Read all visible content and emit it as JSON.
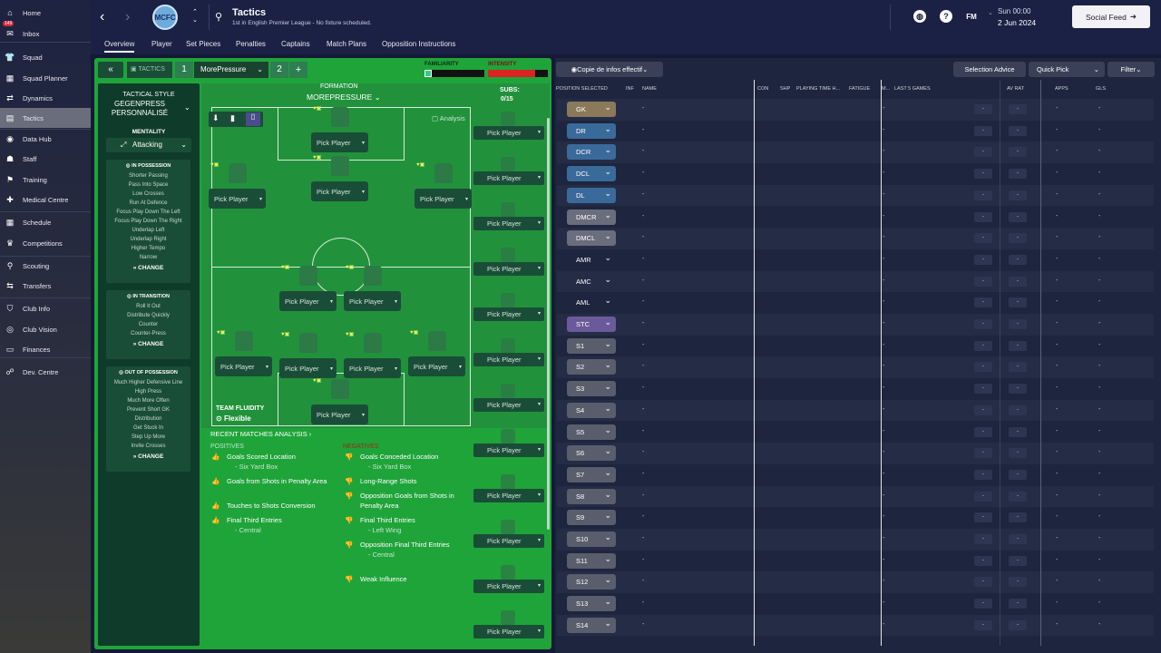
{
  "sidebar": {
    "items": [
      {
        "label": "Home",
        "icon": "home-icon",
        "glyph": "⌂"
      },
      {
        "label": "Inbox",
        "icon": "inbox-icon",
        "glyph": "✉",
        "badge": "149"
      },
      {
        "label": "Squad",
        "icon": "squad-icon",
        "glyph": "👕"
      },
      {
        "label": "Squad Planner",
        "icon": "squad-planner-icon",
        "glyph": "▦"
      },
      {
        "label": "Dynamics",
        "icon": "dynamics-icon",
        "glyph": "⇄"
      },
      {
        "label": "Tactics",
        "icon": "tactics-icon",
        "glyph": "▤"
      },
      {
        "label": "Data Hub",
        "icon": "data-hub-icon",
        "glyph": "◉"
      },
      {
        "label": "Staff",
        "icon": "staff-icon",
        "glyph": "☗"
      },
      {
        "label": "Training",
        "icon": "training-icon",
        "glyph": "⚑"
      },
      {
        "label": "Medical Centre",
        "icon": "medical-icon",
        "glyph": "✚"
      },
      {
        "label": "Schedule",
        "icon": "schedule-icon",
        "glyph": "▦"
      },
      {
        "label": "Competitions",
        "icon": "trophy-icon",
        "glyph": "♛"
      },
      {
        "label": "Scouting",
        "icon": "scouting-icon",
        "glyph": "⚲"
      },
      {
        "label": "Transfers",
        "icon": "transfers-icon",
        "glyph": "⇆"
      },
      {
        "label": "Club Info",
        "icon": "club-info-icon",
        "glyph": "⛉"
      },
      {
        "label": "Club Vision",
        "icon": "club-vision-icon",
        "glyph": "◎"
      },
      {
        "label": "Finances",
        "icon": "finances-icon",
        "glyph": "▭"
      },
      {
        "label": "Dev. Centre",
        "icon": "dev-centre-icon",
        "glyph": "☍"
      }
    ]
  },
  "header": {
    "title": "Tactics",
    "subtitle": "1st in English Premier League - No fixture scheduled.",
    "crest": "MCFC",
    "date_day": "Sun 00:00",
    "date": "2 Jun 2024",
    "social_label": "Social Feed",
    "fm_label": "FM",
    "help_label": "?"
  },
  "tabs": [
    "Overview",
    "Player",
    "Set Pieces",
    "Penalties",
    "Captains",
    "Match Plans",
    "Opposition Instructions"
  ],
  "tactic_bar": {
    "tactics_label": "TACTICS",
    "slot1": "1",
    "tactic_name": "MorePressure",
    "slot2": "2",
    "add": "+",
    "familiarity": "FAMILIARITY",
    "intensity": "INTENSITY"
  },
  "left_col": {
    "style_label": "TACTICAL STYLE",
    "style_value": "GEGENPRESS PERSONNALISÉ",
    "mentality_label": "MENTALITY",
    "mentality_value": "Attacking",
    "in_possession_title": "IN POSSESSION",
    "in_possession": [
      "Shorter Passing",
      "Pass Into Space",
      "Low Crosses",
      "Run At Defence",
      "Focus Play Down The Left",
      "Focus Play Down The Right",
      "Underlap Left",
      "Underlap Right",
      "Higher Tempo",
      "Narrow"
    ],
    "in_transition_title": "IN TRANSITION",
    "in_transition": [
      "Roll It Out",
      "Distribute Quickly",
      "Counter",
      "Counter-Press"
    ],
    "out_possession_title": "OUT OF POSSESSION",
    "out_possession": [
      "Much Higher Defensive Line",
      "High Press",
      "Much More Often",
      "Prevent Short GK",
      "Distribution",
      "Get Stuck In",
      "Step Up More",
      "Invite Crosses"
    ],
    "change_label": "CHANGE"
  },
  "formation": {
    "label": "FORMATION",
    "name": "MOREPRESSURE",
    "subs_label": "SUBS:",
    "subs_value": "0/15",
    "analysis_label": "Analysis",
    "pick": "Pick Player",
    "fluidity_label": "TEAM FLUIDITY",
    "fluidity_value": "Flexible"
  },
  "analysis": {
    "title": "RECENT MATCHES ANALYSIS",
    "positives_label": "POSITIVES",
    "negatives_label": "NEGATIVES",
    "positives": [
      {
        "t": "Goals Scored Location",
        "s": "- Six Yard Box"
      },
      {
        "t": "Goals from Shots in Penalty Area",
        "s": ""
      },
      {
        "t": "Touches to Shots Conversion",
        "s": ""
      },
      {
        "t": "Final Third Entries",
        "s": "- Central"
      }
    ],
    "negatives": [
      {
        "t": "Goals Conceded Location",
        "s": "- Six Yard Box"
      },
      {
        "t": "Long-Range Shots",
        "s": ""
      },
      {
        "t": "Opposition Goals from Shots in Penalty Area",
        "s": ""
      },
      {
        "t": "Final Third Entries",
        "s": "- Left Wing"
      },
      {
        "t": "Opposition Final Third Entries",
        "s": "- Central"
      },
      {
        "t": "Weak Influence",
        "s": ""
      }
    ]
  },
  "right": {
    "copy_label": "Copie de infos effectif",
    "selection_advice": "Selection Advice",
    "quick_pick": "Quick Pick",
    "filter": "Filter",
    "columns": [
      "POSITION SELECTED",
      "INF",
      "NAME",
      "CON",
      "SHP",
      "PLAYING TIME H...",
      "FATIGUE",
      "M...",
      "LAST 5 GAMES",
      "AV RAT",
      "APPS",
      "GLS"
    ],
    "dash": "-",
    "positions": [
      {
        "p": "GK",
        "c": "#8a7a5a"
      },
      {
        "p": "DR",
        "c": "#3a6a9a"
      },
      {
        "p": "DCR",
        "c": "#3a6a9a"
      },
      {
        "p": "DCL",
        "c": "#3a6a9a"
      },
      {
        "p": "DL",
        "c": "#3a6a9a"
      },
      {
        "p": "DMCR",
        "c": "#6a6d7c"
      },
      {
        "p": "DMCL",
        "c": "#6a6d7c"
      },
      {
        "p": "AMR",
        "c": "transparent"
      },
      {
        "p": "AMC",
        "c": "transparent"
      },
      {
        "p": "AML",
        "c": "transparent"
      },
      {
        "p": "STC",
        "c": "#6b5a9a"
      },
      {
        "p": "S1",
        "c": "#5a5d6c"
      },
      {
        "p": "S2",
        "c": "#5a5d6c"
      },
      {
        "p": "S3",
        "c": "#5a5d6c"
      },
      {
        "p": "S4",
        "c": "#5a5d6c"
      },
      {
        "p": "S5",
        "c": "#5a5d6c"
      },
      {
        "p": "S6",
        "c": "#5a5d6c"
      },
      {
        "p": "S7",
        "c": "#5a5d6c"
      },
      {
        "p": "S8",
        "c": "#5a5d6c"
      },
      {
        "p": "S9",
        "c": "#5a5d6c"
      },
      {
        "p": "S10",
        "c": "#5a5d6c"
      },
      {
        "p": "S11",
        "c": "#5a5d6c"
      },
      {
        "p": "S12",
        "c": "#5a5d6c"
      },
      {
        "p": "S13",
        "c": "#5a5d6c"
      },
      {
        "p": "S14",
        "c": "#5a5d6c"
      }
    ]
  }
}
